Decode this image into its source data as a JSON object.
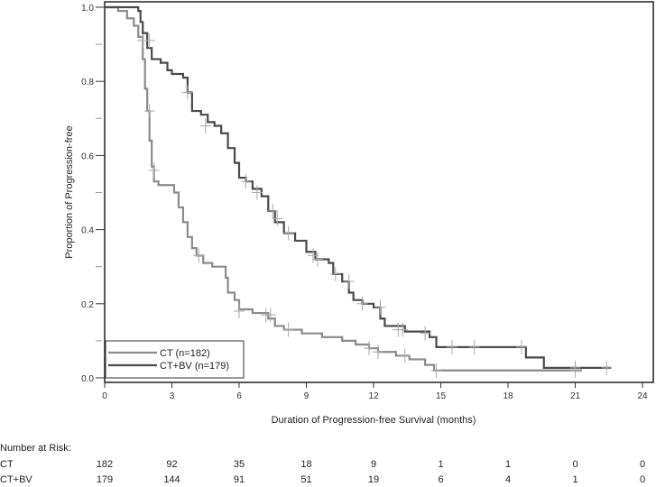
{
  "chart_data": {
    "type": "line",
    "subtype": "kaplan-meier",
    "xlabel": "Duration of Progression-free Survival (months)",
    "ylabel": "Proportion of Progression-free",
    "xlim": [
      0,
      24
    ],
    "ylim": [
      0,
      1
    ],
    "xticks": [
      "0",
      "3",
      "6",
      "9",
      "12",
      "15",
      "18",
      "21",
      "24"
    ],
    "yticks": [
      "0.0",
      "0.2",
      "0.4",
      "0.6",
      "0.8",
      "1.0"
    ],
    "legend_position": "bottom-left",
    "series": [
      {
        "name": "CT (n=182)",
        "color": "#8a8a8a",
        "steps": [
          [
            0,
            1.0
          ],
          [
            0.6,
            0.99
          ],
          [
            1.0,
            0.97
          ],
          [
            1.3,
            0.95
          ],
          [
            1.5,
            0.92
          ],
          [
            1.7,
            0.86
          ],
          [
            1.8,
            0.78
          ],
          [
            1.9,
            0.72
          ],
          [
            2.0,
            0.64
          ],
          [
            2.1,
            0.57
          ],
          [
            2.2,
            0.53
          ],
          [
            2.4,
            0.52
          ],
          [
            3.1,
            0.5
          ],
          [
            3.3,
            0.46
          ],
          [
            3.5,
            0.42
          ],
          [
            3.7,
            0.38
          ],
          [
            3.9,
            0.35
          ],
          [
            4.1,
            0.33
          ],
          [
            4.4,
            0.31
          ],
          [
            4.8,
            0.3
          ],
          [
            5.4,
            0.27
          ],
          [
            5.5,
            0.23
          ],
          [
            5.8,
            0.21
          ],
          [
            6.0,
            0.185
          ],
          [
            6.6,
            0.175
          ],
          [
            7.3,
            0.16
          ],
          [
            7.6,
            0.14
          ],
          [
            8.0,
            0.13
          ],
          [
            8.8,
            0.12
          ],
          [
            9.7,
            0.11
          ],
          [
            10.6,
            0.1
          ],
          [
            11.2,
            0.09
          ],
          [
            11.8,
            0.08
          ],
          [
            12.2,
            0.07
          ],
          [
            13.0,
            0.06
          ],
          [
            13.6,
            0.05
          ],
          [
            14.3,
            0.035
          ],
          [
            14.7,
            0.02
          ],
          [
            21.3,
            0.02
          ]
        ],
        "censored": [
          [
            1.7,
            0.91
          ],
          [
            2.0,
            0.72
          ],
          [
            2.2,
            0.56
          ],
          [
            4.2,
            0.33
          ],
          [
            6.0,
            0.18
          ],
          [
            7.2,
            0.17
          ],
          [
            7.4,
            0.17
          ],
          [
            8.2,
            0.13
          ],
          [
            11.8,
            0.08
          ],
          [
            12.2,
            0.07
          ],
          [
            13.4,
            0.06
          ],
          [
            14.8,
            0.02
          ],
          [
            21.0,
            0.02
          ]
        ]
      },
      {
        "name": "CT+BV (n=179)",
        "color": "#4a4a4a",
        "steps": [
          [
            0,
            1.0
          ],
          [
            1.5,
            0.99
          ],
          [
            1.6,
            0.96
          ],
          [
            1.7,
            0.93
          ],
          [
            1.9,
            0.89
          ],
          [
            2.1,
            0.86
          ],
          [
            2.5,
            0.85
          ],
          [
            2.8,
            0.83
          ],
          [
            3.0,
            0.82
          ],
          [
            3.5,
            0.81
          ],
          [
            3.7,
            0.77
          ],
          [
            3.9,
            0.72
          ],
          [
            4.3,
            0.71
          ],
          [
            4.6,
            0.69
          ],
          [
            4.9,
            0.68
          ],
          [
            5.2,
            0.66
          ],
          [
            5.5,
            0.62
          ],
          [
            5.8,
            0.58
          ],
          [
            6.0,
            0.54
          ],
          [
            6.3,
            0.53
          ],
          [
            6.6,
            0.51
          ],
          [
            7.0,
            0.49
          ],
          [
            7.3,
            0.45
          ],
          [
            7.6,
            0.42
          ],
          [
            8.0,
            0.39
          ],
          [
            8.5,
            0.37
          ],
          [
            9.0,
            0.34
          ],
          [
            9.4,
            0.32
          ],
          [
            10.0,
            0.31
          ],
          [
            10.2,
            0.28
          ],
          [
            10.6,
            0.26
          ],
          [
            10.9,
            0.23
          ],
          [
            11.1,
            0.21
          ],
          [
            11.5,
            0.2
          ],
          [
            12.0,
            0.19
          ],
          [
            12.3,
            0.16
          ],
          [
            12.5,
            0.14
          ],
          [
            13.4,
            0.125
          ],
          [
            14.5,
            0.11
          ],
          [
            14.8,
            0.083
          ],
          [
            18.8,
            0.055
          ],
          [
            19.6,
            0.027
          ],
          [
            22.6,
            0.027
          ]
        ],
        "censored": [
          [
            2.0,
            0.91
          ],
          [
            3.7,
            0.77
          ],
          [
            4.5,
            0.68
          ],
          [
            6.3,
            0.53
          ],
          [
            6.8,
            0.5
          ],
          [
            7.5,
            0.45
          ],
          [
            7.7,
            0.43
          ],
          [
            8.2,
            0.39
          ],
          [
            9.3,
            0.33
          ],
          [
            9.5,
            0.32
          ],
          [
            10.3,
            0.28
          ],
          [
            10.9,
            0.26
          ],
          [
            11.5,
            0.2
          ],
          [
            12.3,
            0.19
          ],
          [
            13.1,
            0.13
          ],
          [
            13.3,
            0.13
          ],
          [
            14.3,
            0.12
          ],
          [
            15.5,
            0.083
          ],
          [
            16.5,
            0.083
          ],
          [
            18.6,
            0.083
          ],
          [
            21.0,
            0.027
          ],
          [
            22.4,
            0.027
          ]
        ]
      }
    ],
    "risk_table": {
      "title": "Number at Risk:",
      "timepoints": [
        0,
        3,
        6,
        9,
        12,
        15,
        18,
        21,
        24
      ],
      "rows": [
        {
          "label": "CT",
          "values": [
            "182",
            "92",
            "35",
            "18",
            "9",
            "1",
            "1",
            "0",
            "0"
          ]
        },
        {
          "label": "CT+BV",
          "values": [
            "179",
            "144",
            "91",
            "51",
            "19",
            "6",
            "4",
            "1",
            "0"
          ]
        }
      ]
    }
  }
}
